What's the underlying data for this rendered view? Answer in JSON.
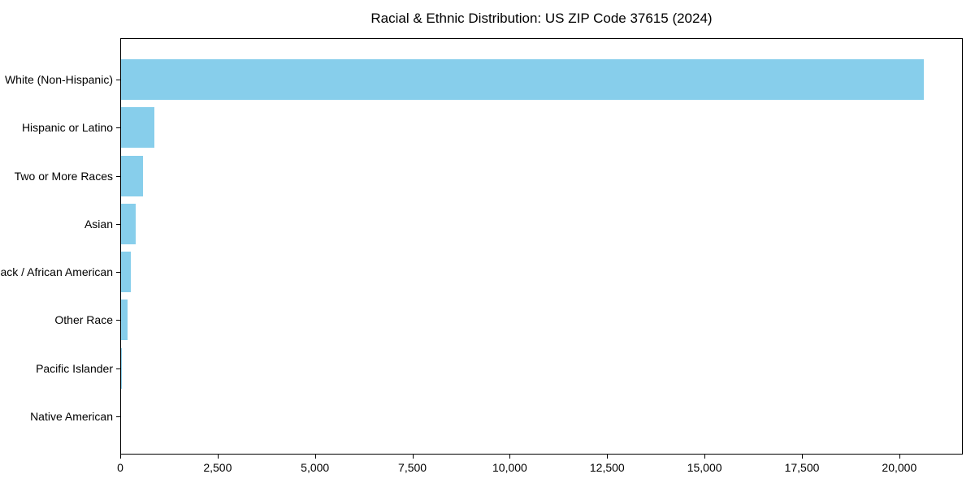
{
  "chart_data": {
    "type": "bar",
    "orientation": "horizontal",
    "title": "Racial & Ethnic Distribution: US ZIP Code 37615 (2024)",
    "categories": [
      "White (Non-Hispanic)",
      "Hispanic or Latino",
      "Two or More Races",
      "Asian",
      "Black / African American",
      "Other Race",
      "Pacific Islander",
      "Native American"
    ],
    "values": [
      20600,
      850,
      560,
      380,
      250,
      165,
      15,
      0
    ],
    "xlabel": "",
    "ylabel": "",
    "xlim": [
      0,
      21630
    ],
    "xticks": [
      0,
      2500,
      5000,
      7500,
      10000,
      12500,
      15000,
      17500,
      20000
    ],
    "xtick_labels": [
      "0",
      "2,500",
      "5,000",
      "7,500",
      "10,000",
      "12,500",
      "15,000",
      "17,500",
      "20,000"
    ],
    "bar_color": "#87CEEB",
    "axis_color": "#000000",
    "text_color": "#000000",
    "background_color": "#ffffff",
    "grid": false,
    "legend": null
  }
}
